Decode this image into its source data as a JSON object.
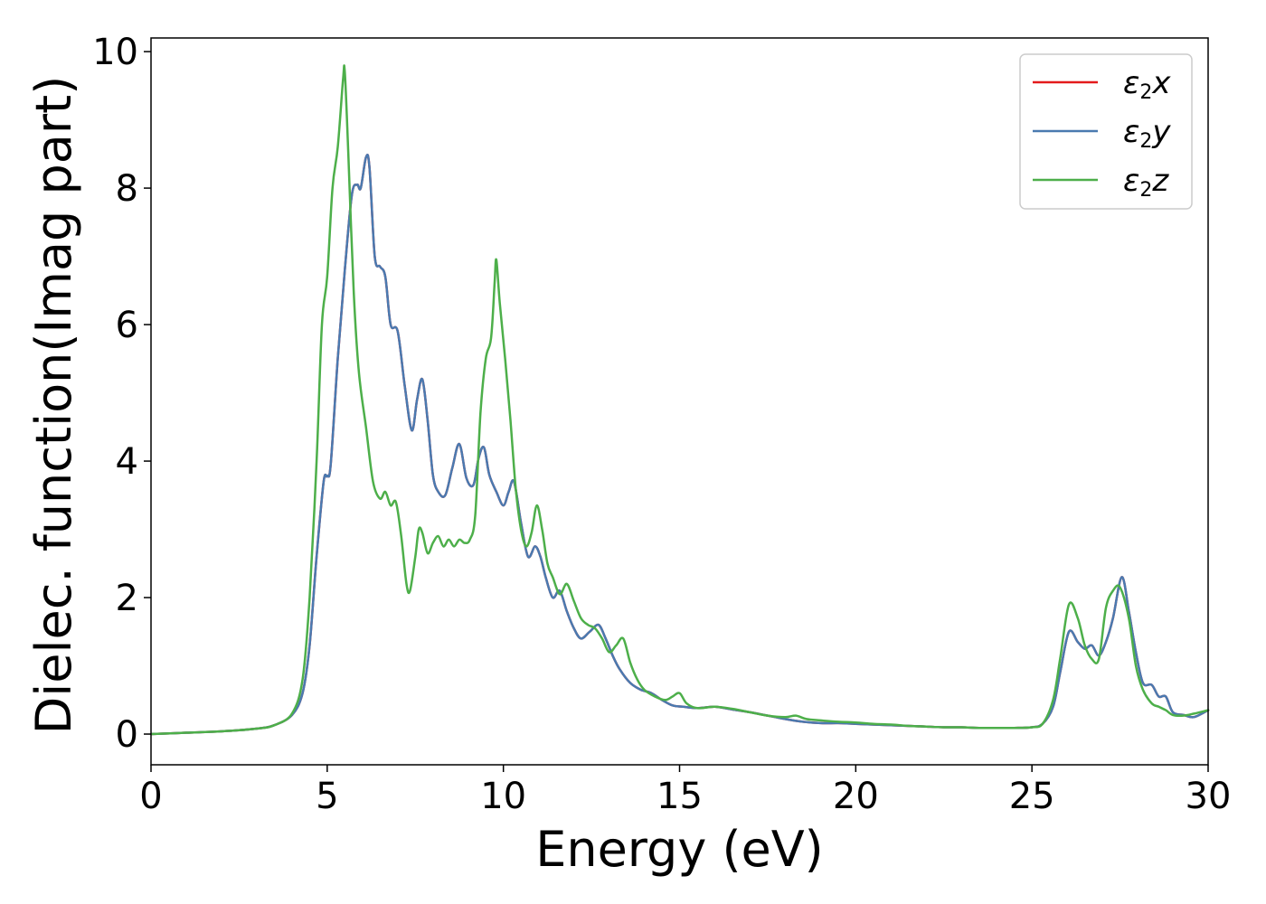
{
  "chart_data": {
    "type": "line",
    "xlabel": "Energy (eV)",
    "ylabel": "Dielec. function(Imag part)",
    "xlim": [
      0,
      30
    ],
    "ylim": [
      -0.45,
      10.2
    ],
    "xticks": [
      0,
      5,
      10,
      15,
      20,
      25,
      30
    ],
    "yticks": [
      0,
      2,
      4,
      6,
      8,
      10
    ],
    "grid": false,
    "legend": "top-right",
    "series": [
      {
        "name": "ε2x",
        "legend": {
          "base": "ε",
          "sub": "2",
          "axis": "x"
        },
        "color": "#e41a1c",
        "x": [
          0,
          1,
          2,
          3,
          3.5,
          4,
          4.3,
          4.5,
          4.7,
          4.9,
          5.0,
          5.1,
          5.3,
          5.5,
          5.7,
          5.85,
          5.95,
          6.1,
          6.2,
          6.35,
          6.5,
          6.65,
          6.8,
          7.0,
          7.2,
          7.4,
          7.55,
          7.7,
          7.85,
          8.0,
          8.15,
          8.35,
          8.55,
          8.75,
          8.95,
          9.15,
          9.3,
          9.45,
          9.6,
          9.8,
          10.0,
          10.15,
          10.3,
          10.5,
          10.7,
          10.9,
          11.05,
          11.2,
          11.4,
          11.6,
          11.8,
          12.0,
          12.2,
          12.45,
          12.7,
          12.9,
          13.1,
          13.3,
          13.6,
          13.9,
          14.2,
          14.5,
          14.8,
          15.1,
          15.5,
          16.0,
          16.5,
          17.0,
          17.5,
          18.0,
          18.5,
          19.0,
          19.5,
          20.0,
          20.5,
          21.0,
          21.5,
          22.0,
          22.5,
          23.0,
          23.5,
          24.0,
          24.5,
          25.0,
          25.3,
          25.6,
          25.8,
          26.05,
          26.3,
          26.5,
          26.7,
          26.9,
          27.1,
          27.3,
          27.55,
          27.75,
          27.95,
          28.15,
          28.4,
          28.6,
          28.8,
          29.0,
          29.3,
          29.6,
          30.0
        ],
        "y": [
          0,
          0.02,
          0.04,
          0.08,
          0.13,
          0.28,
          0.6,
          1.3,
          2.6,
          3.7,
          3.78,
          3.95,
          5.5,
          6.8,
          7.9,
          8.05,
          8.0,
          8.45,
          8.3,
          7.0,
          6.85,
          6.7,
          6.0,
          5.9,
          5.1,
          4.45,
          4.9,
          5.2,
          4.6,
          3.8,
          3.55,
          3.5,
          3.9,
          4.25,
          3.75,
          3.65,
          4.05,
          4.2,
          3.8,
          3.55,
          3.35,
          3.55,
          3.7,
          3.1,
          2.6,
          2.75,
          2.6,
          2.3,
          2.0,
          2.1,
          1.8,
          1.55,
          1.4,
          1.5,
          1.6,
          1.4,
          1.15,
          0.95,
          0.75,
          0.65,
          0.6,
          0.5,
          0.42,
          0.4,
          0.38,
          0.4,
          0.36,
          0.32,
          0.27,
          0.22,
          0.18,
          0.16,
          0.16,
          0.15,
          0.14,
          0.13,
          0.12,
          0.11,
          0.1,
          0.1,
          0.09,
          0.09,
          0.09,
          0.1,
          0.15,
          0.4,
          0.9,
          1.5,
          1.35,
          1.25,
          1.3,
          1.15,
          1.35,
          1.7,
          2.3,
          1.8,
          1.2,
          0.75,
          0.72,
          0.55,
          0.55,
          0.32,
          0.28,
          0.25,
          0.35
        ]
      },
      {
        "name": "ε2y",
        "legend": {
          "base": "ε",
          "sub": "2",
          "axis": "y"
        },
        "color": "#4a7ab0",
        "x": [
          0,
          1,
          2,
          3,
          3.5,
          4,
          4.3,
          4.5,
          4.7,
          4.9,
          5.0,
          5.1,
          5.3,
          5.5,
          5.7,
          5.85,
          5.95,
          6.1,
          6.2,
          6.35,
          6.5,
          6.65,
          6.8,
          7.0,
          7.2,
          7.4,
          7.55,
          7.7,
          7.85,
          8.0,
          8.15,
          8.35,
          8.55,
          8.75,
          8.95,
          9.15,
          9.3,
          9.45,
          9.6,
          9.8,
          10.0,
          10.15,
          10.3,
          10.5,
          10.7,
          10.9,
          11.05,
          11.2,
          11.4,
          11.6,
          11.8,
          12.0,
          12.2,
          12.45,
          12.7,
          12.9,
          13.1,
          13.3,
          13.6,
          13.9,
          14.2,
          14.5,
          14.8,
          15.1,
          15.5,
          16.0,
          16.5,
          17.0,
          17.5,
          18.0,
          18.5,
          19.0,
          19.5,
          20.0,
          20.5,
          21.0,
          21.5,
          22.0,
          22.5,
          23.0,
          23.5,
          24.0,
          24.5,
          25.0,
          25.3,
          25.6,
          25.8,
          26.05,
          26.3,
          26.5,
          26.7,
          26.9,
          27.1,
          27.3,
          27.55,
          27.75,
          27.95,
          28.15,
          28.4,
          28.6,
          28.8,
          29.0,
          29.3,
          29.6,
          30.0
        ],
        "y": [
          0,
          0.02,
          0.04,
          0.08,
          0.13,
          0.28,
          0.6,
          1.3,
          2.6,
          3.7,
          3.78,
          3.95,
          5.5,
          6.8,
          7.9,
          8.05,
          8.0,
          8.45,
          8.3,
          7.0,
          6.85,
          6.7,
          6.0,
          5.9,
          5.1,
          4.45,
          4.9,
          5.2,
          4.6,
          3.8,
          3.55,
          3.5,
          3.9,
          4.25,
          3.75,
          3.65,
          4.05,
          4.2,
          3.8,
          3.55,
          3.35,
          3.55,
          3.7,
          3.1,
          2.6,
          2.75,
          2.6,
          2.3,
          2.0,
          2.1,
          1.8,
          1.55,
          1.4,
          1.5,
          1.6,
          1.4,
          1.15,
          0.95,
          0.75,
          0.65,
          0.6,
          0.5,
          0.42,
          0.4,
          0.38,
          0.4,
          0.36,
          0.32,
          0.27,
          0.22,
          0.18,
          0.16,
          0.16,
          0.15,
          0.14,
          0.13,
          0.12,
          0.11,
          0.1,
          0.1,
          0.09,
          0.09,
          0.09,
          0.1,
          0.15,
          0.4,
          0.9,
          1.5,
          1.35,
          1.25,
          1.3,
          1.15,
          1.35,
          1.7,
          2.3,
          1.8,
          1.2,
          0.75,
          0.72,
          0.55,
          0.55,
          0.32,
          0.28,
          0.25,
          0.35
        ]
      },
      {
        "name": "ε2z",
        "legend": {
          "base": "ε",
          "sub": "2",
          "axis": "z"
        },
        "color": "#4daf4a",
        "x": [
          0,
          1,
          2,
          3,
          3.5,
          4,
          4.3,
          4.5,
          4.7,
          4.85,
          5.0,
          5.15,
          5.3,
          5.45,
          5.5,
          5.6,
          5.75,
          5.9,
          6.1,
          6.3,
          6.5,
          6.65,
          6.8,
          6.95,
          7.1,
          7.25,
          7.35,
          7.5,
          7.6,
          7.7,
          7.85,
          8.0,
          8.15,
          8.3,
          8.45,
          8.6,
          8.75,
          8.9,
          9.05,
          9.2,
          9.35,
          9.5,
          9.65,
          9.75,
          9.8,
          9.9,
          10.05,
          10.2,
          10.35,
          10.5,
          10.65,
          10.8,
          10.95,
          11.1,
          11.25,
          11.4,
          11.6,
          11.8,
          12.0,
          12.2,
          12.4,
          12.6,
          12.8,
          13.0,
          13.2,
          13.4,
          13.6,
          13.8,
          14.0,
          14.3,
          14.6,
          14.8,
          15.0,
          15.2,
          15.5,
          16.0,
          16.5,
          17.0,
          17.5,
          18.0,
          18.3,
          18.6,
          19.0,
          19.5,
          20.0,
          20.5,
          21.0,
          21.5,
          22.0,
          22.5,
          23.0,
          23.5,
          24.0,
          24.5,
          25.0,
          25.3,
          25.6,
          25.8,
          26.05,
          26.3,
          26.5,
          26.7,
          26.9,
          27.1,
          27.3,
          27.5,
          27.75,
          27.95,
          28.15,
          28.4,
          28.6,
          28.8,
          29.0,
          29.3,
          29.6,
          30.0
        ],
        "y": [
          0,
          0.02,
          0.04,
          0.08,
          0.13,
          0.3,
          0.8,
          2.0,
          4.0,
          6.0,
          6.7,
          8.0,
          8.6,
          9.6,
          9.7,
          8.5,
          6.5,
          5.3,
          4.5,
          3.7,
          3.45,
          3.55,
          3.35,
          3.4,
          2.9,
          2.2,
          2.1,
          2.6,
          3.0,
          2.95,
          2.65,
          2.8,
          2.9,
          2.75,
          2.85,
          2.75,
          2.85,
          2.8,
          2.85,
          3.2,
          4.7,
          5.5,
          5.8,
          6.6,
          6.95,
          6.3,
          5.5,
          4.6,
          3.6,
          3.0,
          2.75,
          2.95,
          3.35,
          3.0,
          2.5,
          2.3,
          2.05,
          2.2,
          1.95,
          1.7,
          1.6,
          1.55,
          1.4,
          1.2,
          1.3,
          1.4,
          1.05,
          0.8,
          0.65,
          0.55,
          0.5,
          0.55,
          0.6,
          0.45,
          0.38,
          0.4,
          0.37,
          0.32,
          0.27,
          0.25,
          0.27,
          0.22,
          0.2,
          0.18,
          0.17,
          0.15,
          0.14,
          0.12,
          0.11,
          0.1,
          0.1,
          0.09,
          0.09,
          0.09,
          0.1,
          0.15,
          0.5,
          1.1,
          1.9,
          1.7,
          1.3,
          1.1,
          1.1,
          1.85,
          2.1,
          2.15,
          1.7,
          1.0,
          0.65,
          0.45,
          0.4,
          0.35,
          0.28,
          0.27,
          0.3,
          0.35
        ]
      }
    ]
  }
}
